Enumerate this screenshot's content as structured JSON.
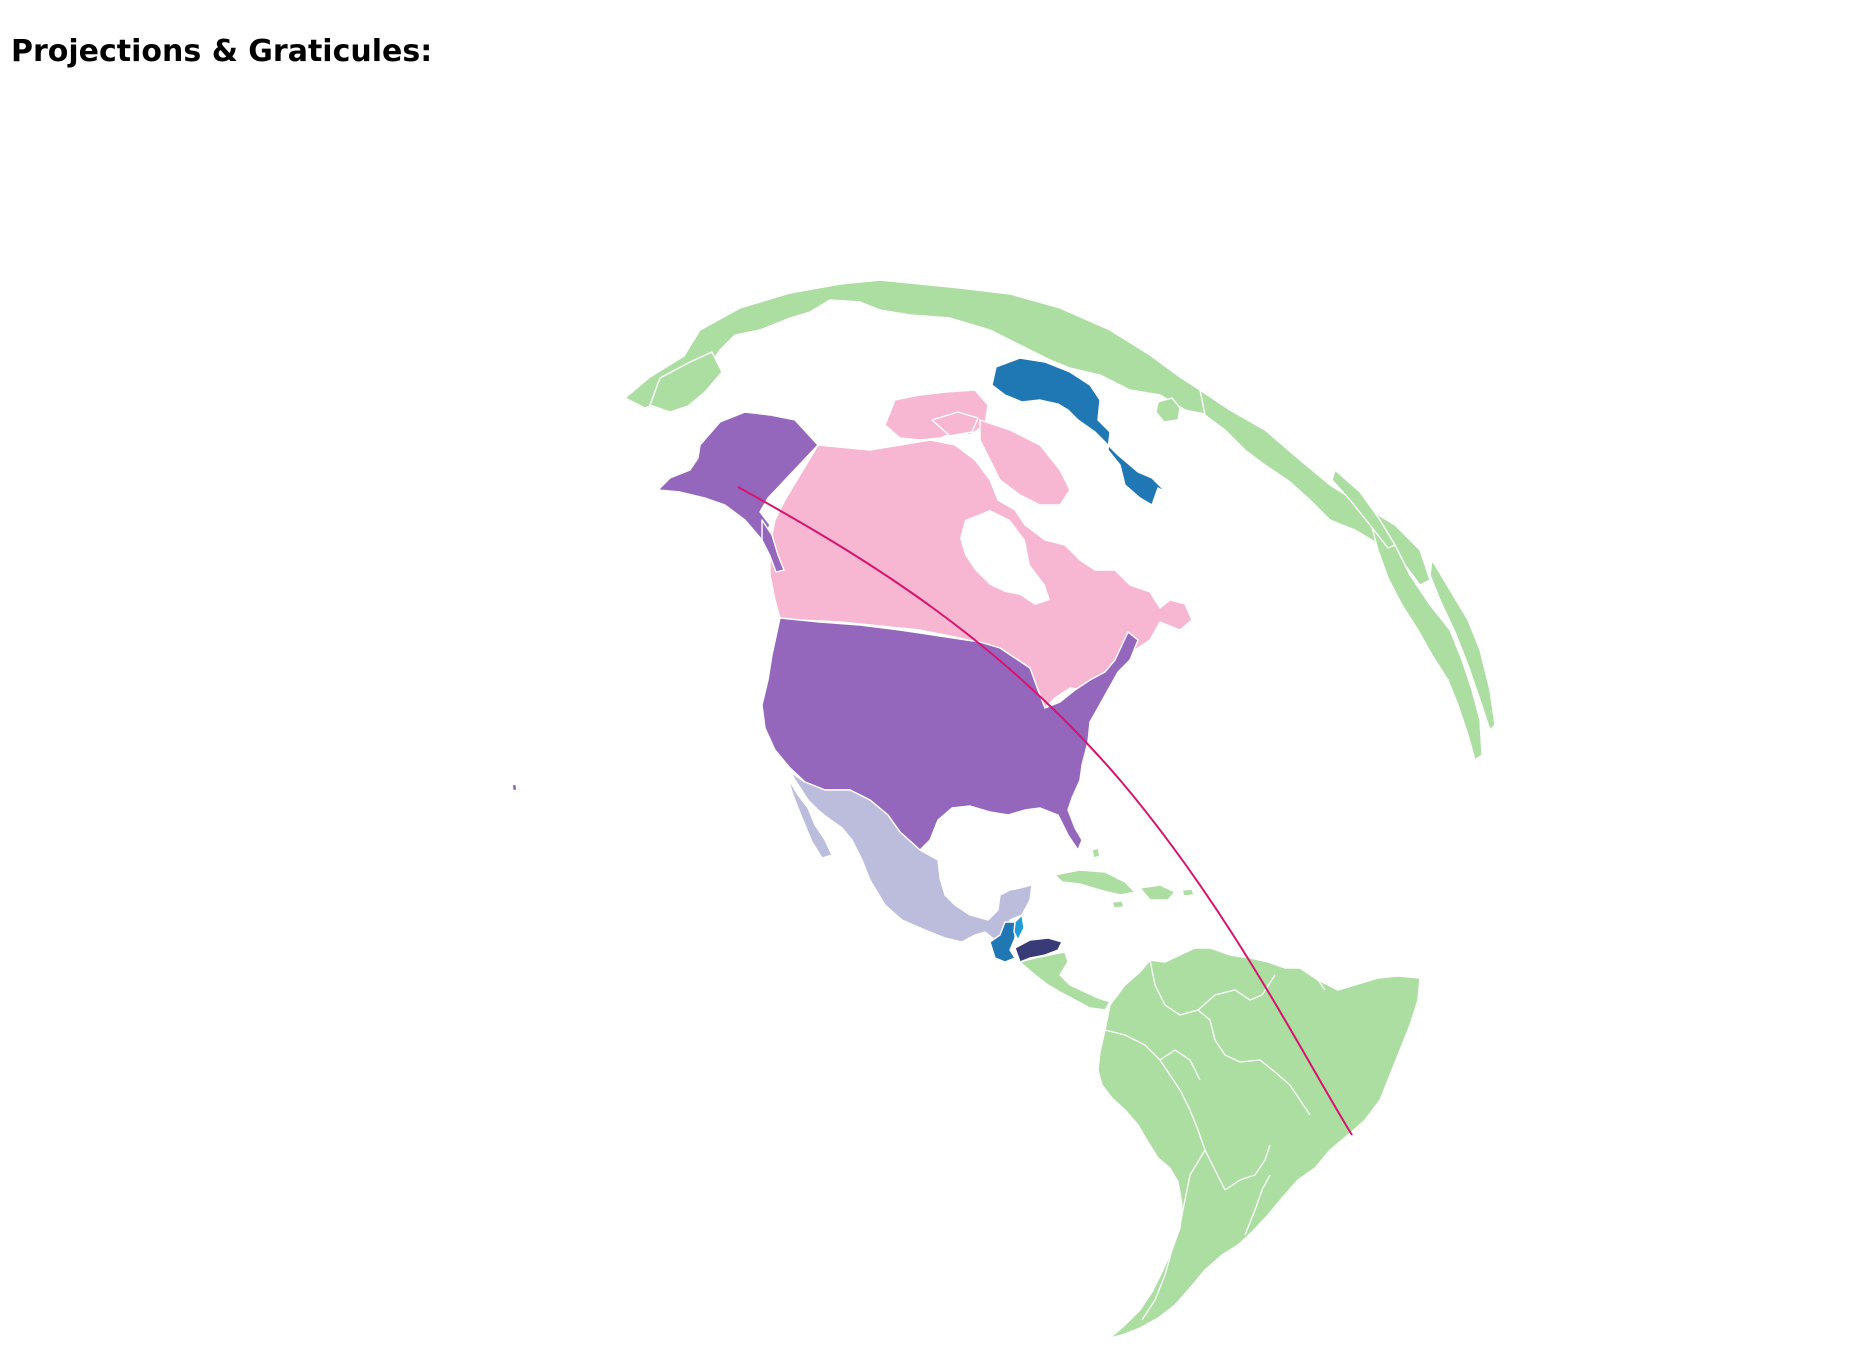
{
  "page": {
    "title": "Projections & Graticules:"
  },
  "map": {
    "projection": "orthographic",
    "graticule": "hidden",
    "regions": [
      {
        "name": "Greenland",
        "color": "#1f77b4"
      },
      {
        "name": "Canada",
        "color": "#f7b6d2"
      },
      {
        "name": "United States",
        "color": "#9467bd"
      },
      {
        "name": "Mexico",
        "color": "#bcbddc"
      },
      {
        "name": "Guatemala",
        "color": "#1f77b4"
      },
      {
        "name": "Belize",
        "color": "#1f9bd6"
      },
      {
        "name": "Honduras",
        "color": "#393b79"
      },
      {
        "name": "Other land",
        "color": "#acdea2"
      }
    ],
    "route": {
      "from": "Alaska",
      "to": "Southeastern Brazil",
      "color": "#d6146f"
    }
  }
}
